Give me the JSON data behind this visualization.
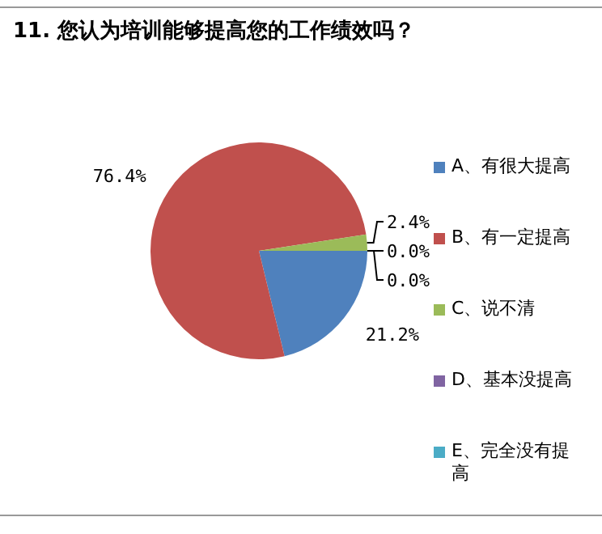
{
  "chart_data": {
    "type": "pie",
    "title": "11. 您认为培训能够提高您的工作绩效吗？",
    "categories": [
      "A、有很大提高",
      "B、有一定提高",
      "C、说不清",
      "D、基本没提高",
      "E、完全没有提高"
    ],
    "values": [
      21.2,
      76.4,
      2.4,
      0.0,
      0.0
    ],
    "value_labels": [
      "21.2%",
      "76.4%",
      "2.4%",
      "0.0%",
      "0.0%"
    ],
    "colors": [
      "#4f81bd",
      "#c0504d",
      "#9bbb59",
      "#8064a2",
      "#4bacc6"
    ],
    "legend": "right"
  }
}
